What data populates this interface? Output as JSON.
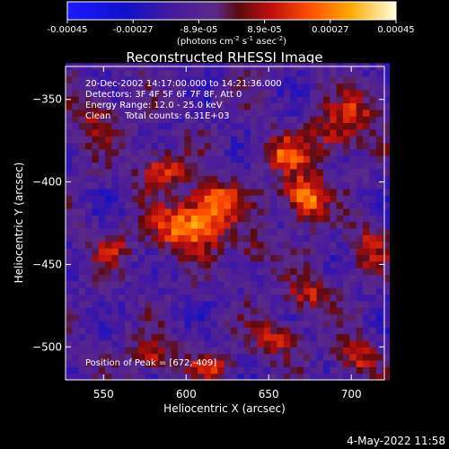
{
  "colorbar": {
    "ticks": [
      "-0.00045",
      "-0.00027",
      "-8.9e-05",
      "8.9e-05",
      "0.00027",
      "0.00045"
    ],
    "unit_main": "(photons cm",
    "unit_exp1": "-2",
    "unit_mid": " s",
    "unit_exp2": "-1",
    "unit_end": " asec",
    "unit_exp3": "-2",
    "unit_close": ")",
    "range": [
      -0.00045,
      0.00045
    ]
  },
  "chart_data": {
    "type": "heatmap",
    "title": "Reconstructed RHESSI Image",
    "xlabel": "Heliocentric X (arcsec)",
    "ylabel": "Heliocentric Y (arcsec)",
    "xlim": [
      527,
      720
    ],
    "ylim": [
      -520,
      -330
    ],
    "x_ticks": [
      550,
      600,
      650,
      700
    ],
    "x_tick_labels": [
      "550",
      "600",
      "650",
      "700"
    ],
    "y_ticks": [
      -350,
      -400,
      -450,
      -500
    ],
    "y_tick_labels": [
      "−350",
      "−400",
      "−450",
      "−500"
    ],
    "annotations": [
      "20-Dec-2002 14:17:00.000 to 14:21:36.000",
      "Detectors: 3F 4F 5F 6F 7F 8F, Att 0",
      "Energy Range: 12.0 - 25.0 keV",
      "Clean     Total counts: 6.31E+03"
    ],
    "peak_label": "Position of Peak = [672,-409]",
    "peak": [
      672,
      -409
    ],
    "sources": [
      {
        "x": 600,
        "y": -428,
        "sx": 14,
        "sy": 10,
        "amp": 0.0004
      },
      {
        "x": 618,
        "y": -412,
        "sx": 11,
        "sy": 9,
        "amp": 0.00036
      },
      {
        "x": 585,
        "y": -393,
        "sx": 10,
        "sy": 8,
        "amp": 0.0003
      },
      {
        "x": 672,
        "y": -409,
        "sx": 9,
        "sy": 9,
        "amp": 0.00045
      },
      {
        "x": 660,
        "y": -383,
        "sx": 11,
        "sy": 8,
        "amp": 0.00028
      },
      {
        "x": 690,
        "y": -370,
        "sx": 10,
        "sy": 10,
        "amp": 0.00024
      },
      {
        "x": 706,
        "y": -356,
        "sx": 9,
        "sy": 8,
        "amp": 0.0002
      },
      {
        "x": 655,
        "y": -495,
        "sx": 9,
        "sy": 7,
        "amp": 0.00026
      },
      {
        "x": 675,
        "y": -468,
        "sx": 10,
        "sy": 8,
        "amp": 0.00022
      },
      {
        "x": 703,
        "y": -506,
        "sx": 9,
        "sy": 8,
        "amp": 0.00025
      },
      {
        "x": 580,
        "y": -505,
        "sx": 10,
        "sy": 7,
        "amp": 0.00022
      },
      {
        "x": 615,
        "y": -512,
        "sx": 11,
        "sy": 6,
        "amp": 0.0002
      },
      {
        "x": 555,
        "y": -440,
        "sx": 9,
        "sy": 8,
        "amp": 0.00018
      },
      {
        "x": 640,
        "y": -440,
        "sx": 8,
        "sy": 7,
        "amp": 0.00016
      },
      {
        "x": 710,
        "y": -440,
        "sx": 8,
        "sy": 9,
        "amp": 0.00022
      },
      {
        "x": 545,
        "y": -360,
        "sx": 10,
        "sy": 10,
        "amp": 0.00018
      }
    ]
  },
  "footer": {
    "date": "4-May-2022 11:58"
  },
  "colors": {
    "background": "#000000",
    "text": "#ffffff"
  }
}
